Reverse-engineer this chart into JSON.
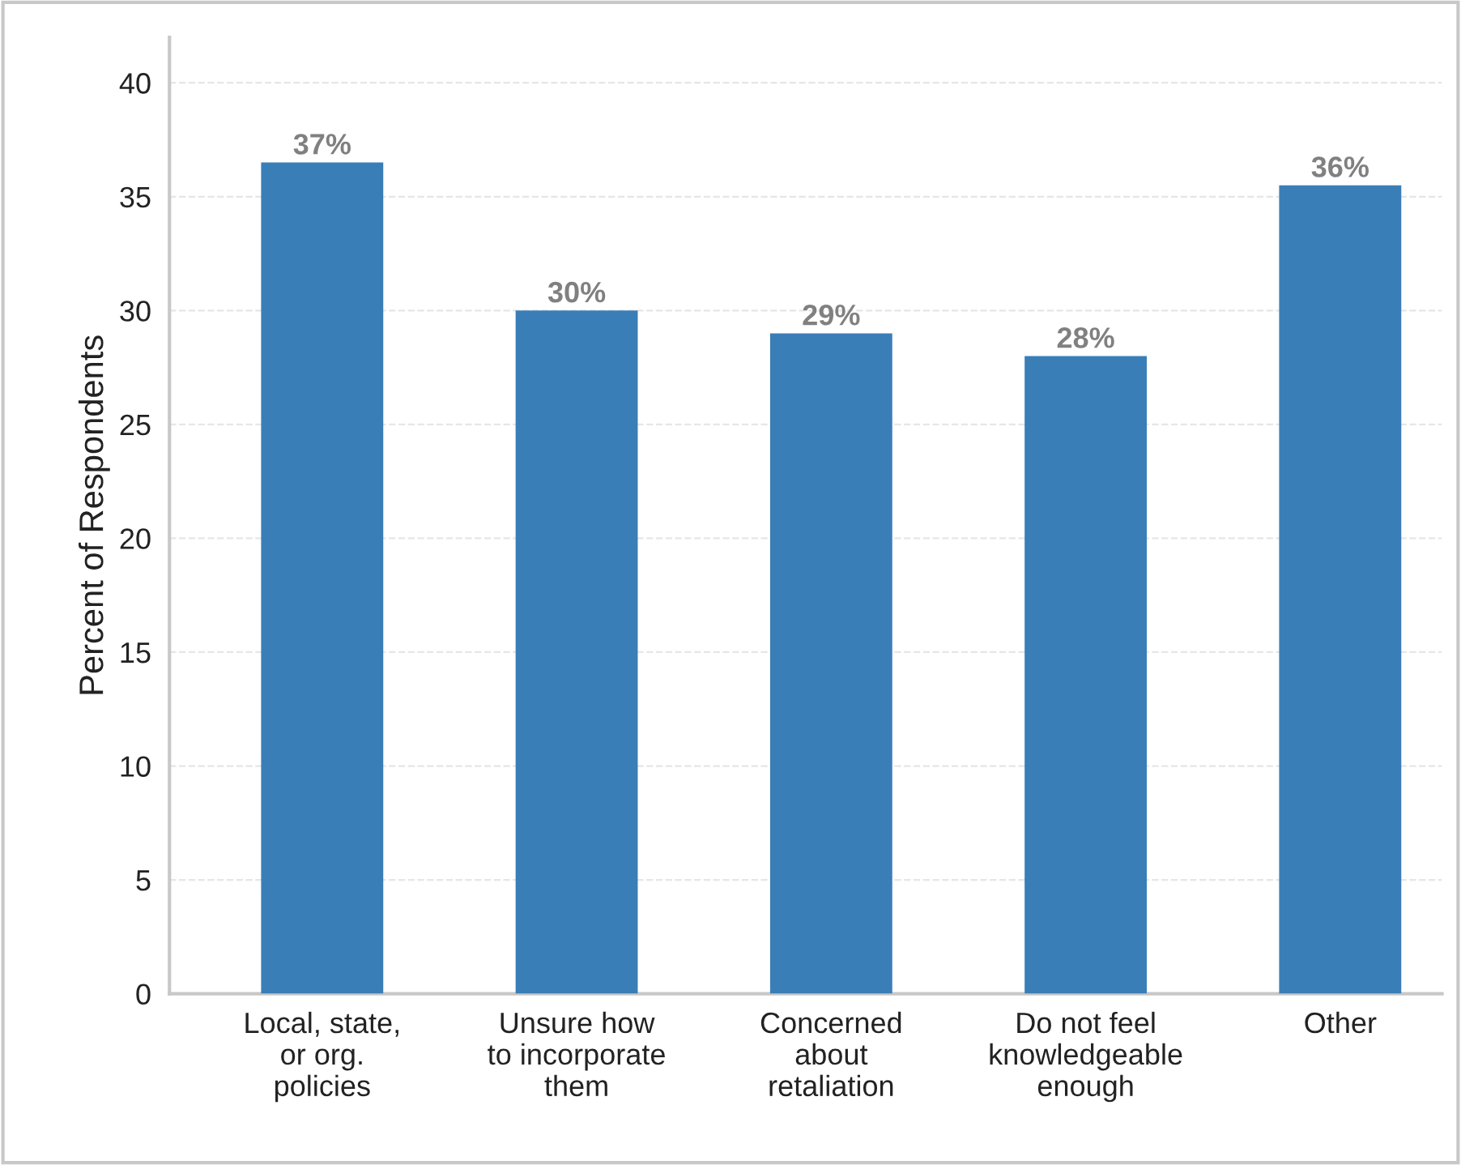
{
  "chart_data": {
    "type": "bar",
    "ylabel": "Percent of Respondents",
    "categories": [
      "Local, state,\nor org.\npolicies",
      "Unsure how\nto incorporate\nthem",
      "Concerned\nabout\nretaliation",
      "Do not feel\nknowledgeable\nenough",
      "Other"
    ],
    "values": [
      36.5,
      30,
      29,
      28,
      35.5
    ],
    "value_labels": [
      "37%",
      "30%",
      "29%",
      "28%",
      "36%"
    ],
    "color": "#3a7eb8",
    "ylim": [
      0,
      42
    ],
    "yticks": [
      0,
      5,
      10,
      15,
      20,
      25,
      30,
      35,
      40
    ],
    "grid": "y"
  }
}
